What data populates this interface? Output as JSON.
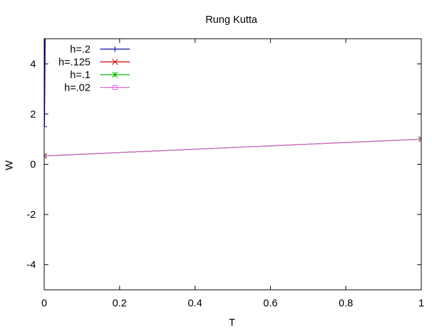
{
  "chart_data": {
    "type": "line",
    "title": "Rung Kutta",
    "xlabel": "T",
    "ylabel": "W",
    "xlim": [
      0,
      1
    ],
    "ylim": [
      -5,
      5
    ],
    "xticks": [
      0,
      0.2,
      0.4,
      0.6,
      0.8,
      1
    ],
    "xtick_labels": [
      "0",
      "0.2",
      "0.4",
      "0.6",
      "0.8",
      "1"
    ],
    "yticks": [
      -4,
      -2,
      0,
      2,
      4
    ],
    "ytick_labels": [
      "-4",
      "-2",
      "0",
      "2",
      "4"
    ],
    "grid": false,
    "legend_position": "top-left",
    "series": [
      {
        "name": "h=.2",
        "color": "#0000a0",
        "marker": "plus",
        "points": [
          [
            0,
            1.5
          ],
          [
            0.002,
            5.2
          ]
        ]
      },
      {
        "name": "h=.125",
        "color": "#cc0000",
        "marker": "cross",
        "points": [
          [
            0,
            0.333
          ],
          [
            0.1,
            0.4
          ],
          [
            0.2,
            0.467
          ],
          [
            0.3,
            0.533
          ],
          [
            0.4,
            0.6
          ],
          [
            0.5,
            0.667
          ],
          [
            0.6,
            0.733
          ],
          [
            0.7,
            0.8
          ],
          [
            0.8,
            0.867
          ],
          [
            0.9,
            0.933
          ],
          [
            1,
            1.0
          ]
        ]
      },
      {
        "name": "h=.1",
        "color": "#00bb00",
        "marker": "star",
        "points": [
          [
            0,
            0.333
          ],
          [
            0.1,
            0.4
          ],
          [
            0.2,
            0.467
          ],
          [
            0.3,
            0.533
          ],
          [
            0.4,
            0.6
          ],
          [
            0.5,
            0.667
          ],
          [
            0.6,
            0.733
          ],
          [
            0.7,
            0.8
          ],
          [
            0.8,
            0.867
          ],
          [
            0.9,
            0.933
          ],
          [
            1,
            1.0
          ]
        ]
      },
      {
        "name": "h=.02",
        "color": "#dd66dd",
        "marker": "box",
        "points": [
          [
            0,
            0.333
          ],
          [
            0.1,
            0.4
          ],
          [
            0.2,
            0.467
          ],
          [
            0.3,
            0.533
          ],
          [
            0.4,
            0.6
          ],
          [
            0.5,
            0.667
          ],
          [
            0.6,
            0.733
          ],
          [
            0.7,
            0.8
          ],
          [
            0.8,
            0.867
          ],
          [
            0.9,
            0.933
          ],
          [
            1,
            1.0
          ]
        ]
      }
    ]
  }
}
